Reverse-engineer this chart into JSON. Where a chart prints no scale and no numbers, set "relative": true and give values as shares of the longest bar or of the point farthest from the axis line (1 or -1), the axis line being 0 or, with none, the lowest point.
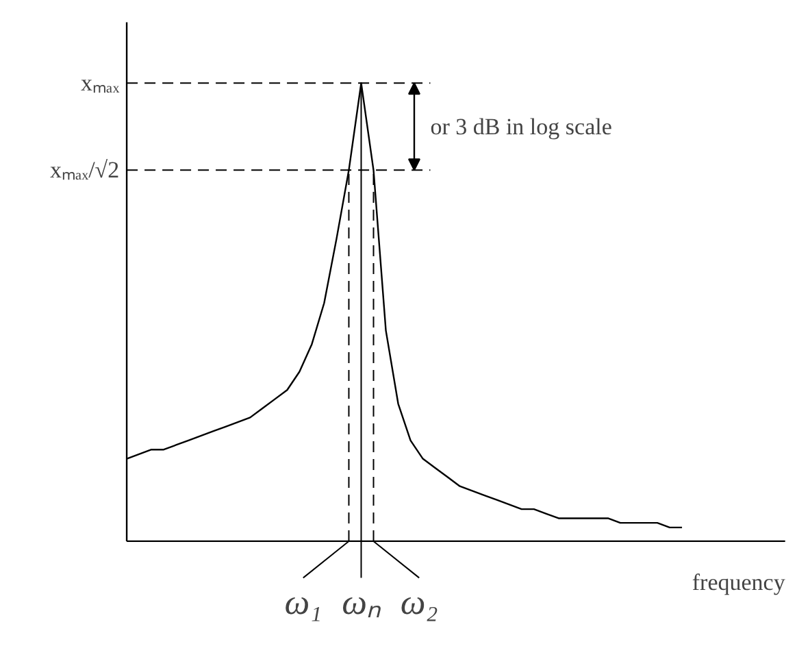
{
  "chart_data": {
    "type": "line",
    "relative": true,
    "color": "#000000",
    "xlabel": "frequency",
    "categories": [
      null,
      null,
      null,
      null,
      null,
      null,
      null,
      null,
      null,
      null,
      null,
      null,
      null,
      null,
      null,
      null,
      null,
      null,
      null,
      null,
      null,
      null,
      null,
      null,
      null,
      null,
      null,
      null,
      null,
      null,
      null,
      null,
      null,
      null,
      null,
      null,
      null,
      null,
      null,
      null,
      null,
      null,
      null,
      null,
      null,
      null
    ],
    "values": [
      0.18,
      0.19,
      0.2,
      0.2,
      0.21,
      0.22,
      0.23,
      0.24,
      0.25,
      0.26,
      0.27,
      0.29,
      0.31,
      0.33,
      0.37,
      0.43,
      0.52,
      0.66,
      0.81,
      1,
      0.81,
      0.46,
      0.3,
      0.22,
      0.18,
      0.16,
      0.14,
      0.12,
      0.11,
      0.1,
      0.09,
      0.08,
      0.07,
      0.07,
      0.06,
      0.05,
      0.05,
      0.05,
      0.05,
      0.05,
      0.04,
      0.04,
      0.04,
      0.04,
      0.03,
      0.03
    ],
    "ref_lines": [
      {
        "axis": "y",
        "value": 1,
        "label": "xₘₐₓ",
        "line_style": "dashed"
      },
      {
        "axis": "y",
        "value": 0.81,
        "label": "xₘₐₓ/√2",
        "line_style": "dashed"
      }
    ],
    "annotations": [
      "ω₁",
      "ωₙ",
      "ω₂",
      "or 3 dB in log scale"
    ]
  }
}
